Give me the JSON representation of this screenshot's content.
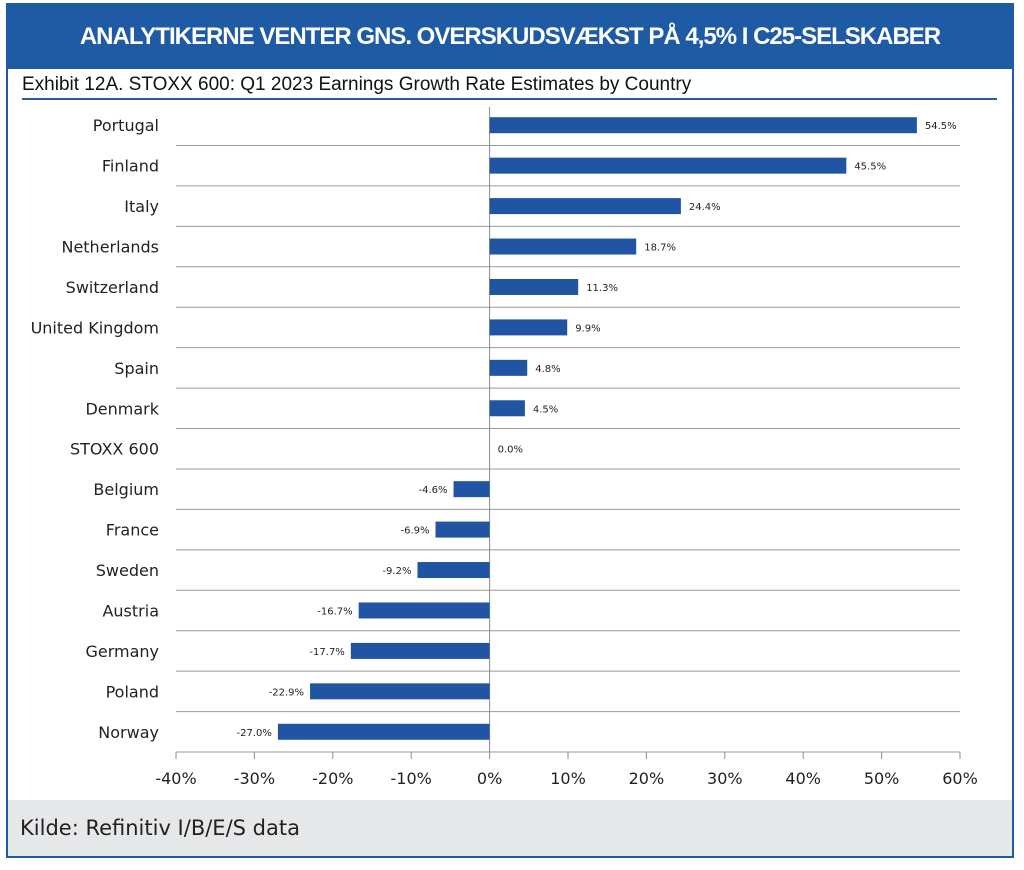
{
  "header": {
    "title": "ANALYTIKERNE VENTER GNS. OVERSKUDSVÆKST PÅ 4,5% I C25-SELSKABER"
  },
  "footer": {
    "source": "Kilde: Refinitiv I/B/E/S data"
  },
  "chart_data": {
    "type": "bar",
    "orientation": "horizontal",
    "title": "Exhibit 12A.  STOXX 600: Q1 2023 Earnings Growth Rate Estimates by Country",
    "categories": [
      "Portugal",
      "Finland",
      "Italy",
      "Netherlands",
      "Switzerland",
      "United Kingdom",
      "Spain",
      "Denmark",
      "STOXX 600",
      "Belgium",
      "France",
      "Sweden",
      "Austria",
      "Germany",
      "Poland",
      "Norway"
    ],
    "values": [
      54.5,
      45.5,
      24.4,
      18.7,
      11.3,
      9.9,
      4.8,
      4.5,
      0.0,
      -4.6,
      -6.9,
      -9.2,
      -16.7,
      -17.7,
      -22.9,
      -27.0
    ],
    "data_labels": [
      "54.5%",
      "45.5%",
      "24.4%",
      "18.7%",
      "11.3%",
      "9.9%",
      "4.8%",
      "4.5%",
      "0.0%",
      "-4.6%",
      "-6.9%",
      "-9.2%",
      "-16.7%",
      "-17.7%",
      "-22.9%",
      "-27.0%"
    ],
    "xlim": [
      -40,
      60
    ],
    "xticks": [
      -40,
      -30,
      -20,
      -10,
      0,
      10,
      20,
      30,
      40,
      50,
      60
    ],
    "xtick_labels": [
      "-40%",
      "-30%",
      "-20%",
      "-10%",
      "0%",
      "10%",
      "20%",
      "30%",
      "40%",
      "50%",
      "60%"
    ],
    "bar_color": "#2155a3",
    "grid": true
  }
}
